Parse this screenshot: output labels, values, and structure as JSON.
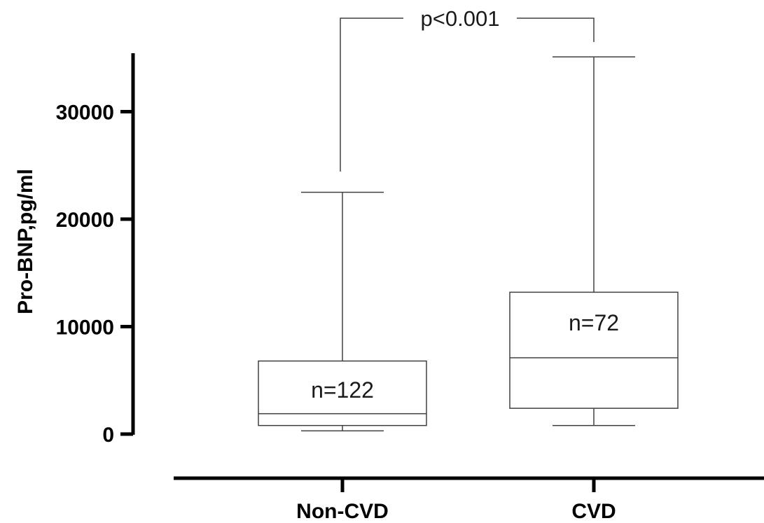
{
  "chart_data": {
    "type": "box",
    "ylabel": "Pro-BNP,pg/ml",
    "ylim": [
      0,
      35000
    ],
    "yticks": [
      "0",
      "10000",
      "20000",
      "30000"
    ],
    "ytick_values": [
      0,
      10000,
      20000,
      30000
    ],
    "categories": [
      "Non-CVD",
      "CVD"
    ],
    "boxes": [
      {
        "category": "Non-CVD",
        "min": 300,
        "q1": 800,
        "median": 1900,
        "q3": 6800,
        "max": 22500,
        "n_label": "n=122"
      },
      {
        "category": "CVD",
        "min": 800,
        "q1": 2400,
        "median": 7100,
        "q3": 13200,
        "max": 35100,
        "n_label": "n=72"
      }
    ],
    "significance": {
      "label": "p<0.001",
      "between": [
        "Non-CVD",
        "CVD"
      ]
    },
    "grid": false,
    "legend": "none"
  }
}
